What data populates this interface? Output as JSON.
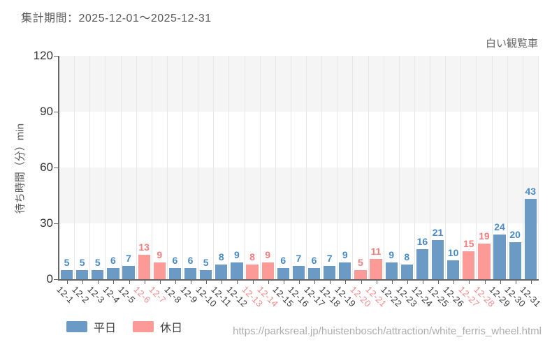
{
  "header": {
    "title": "集計期間：2025-12-01～2025-12-31"
  },
  "chart_data": {
    "type": "bar",
    "title": "白い観覧車",
    "ylabel": "待ち時間（分）min",
    "ylim": [
      0,
      120
    ],
    "yticks": [
      0,
      30,
      60,
      90,
      120
    ],
    "grid": "on",
    "legend_position": "bottom-left",
    "categories": [
      "12-1",
      "12-2",
      "12-3",
      "12-4",
      "12-5",
      "12-6",
      "12-7",
      "12-8",
      "12-9",
      "12-10",
      "12-11",
      "12-12",
      "12-13",
      "12-14",
      "12-15",
      "12-16",
      "12-17",
      "12-18",
      "12-19",
      "12-20",
      "12-21",
      "12-22",
      "12-23",
      "12-24",
      "12-25",
      "12-26",
      "12-27",
      "12-28",
      "12-29",
      "12-30",
      "12-31"
    ],
    "values": [
      5,
      5,
      5,
      6,
      7,
      13,
      9,
      6,
      6,
      5,
      8,
      9,
      8,
      9,
      6,
      7,
      6,
      7,
      9,
      5,
      11,
      9,
      8,
      16,
      21,
      10,
      15,
      19,
      24,
      20,
      43
    ],
    "day_types": [
      "weekday",
      "weekday",
      "weekday",
      "weekday",
      "weekday",
      "holiday",
      "holiday",
      "weekday",
      "weekday",
      "weekday",
      "weekday",
      "weekday",
      "holiday",
      "holiday",
      "weekday",
      "weekday",
      "weekday",
      "weekday",
      "weekday",
      "holiday",
      "holiday",
      "weekday",
      "weekday",
      "weekday",
      "weekday",
      "weekday",
      "holiday",
      "holiday",
      "weekday",
      "weekday",
      "weekday"
    ],
    "legend": [
      {
        "key": "weekday",
        "label": "平日"
      },
      {
        "key": "holiday",
        "label": "休日"
      }
    ],
    "colors": {
      "weekday_bar": "#6b9ac4",
      "holiday_bar": "#fc9a98",
      "weekday_value": "#4a8ac5",
      "holiday_value": "#f57d7d",
      "weekday_tick": "#3d3d3d",
      "holiday_tick": "#f28b8b"
    }
  },
  "footer": {
    "url": "https://parksreal.jp/huistenbosch/attraction/white_ferris_wheel.html"
  }
}
